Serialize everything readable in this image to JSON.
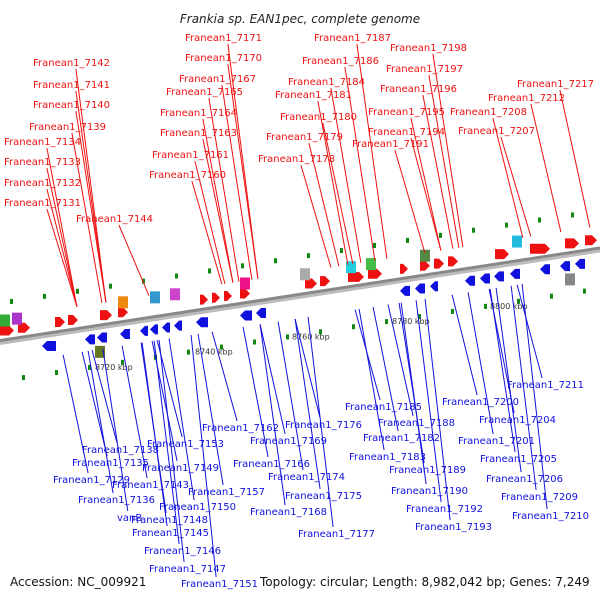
{
  "title": "Frankia sp. EAN1pec, complete genome",
  "footer": {
    "accession": "Accession: NC_009921",
    "stats": "Topology: circular; Length: 8,982,042 bp; Genes: 7,249"
  },
  "colors": {
    "forward": "#ee1111",
    "reverse": "#1111dd",
    "backbone": "#888888",
    "tick": "#118811"
  },
  "scale_ticks": [
    "8720 kbp",
    "8740 kbp",
    "8760 kbp",
    "8780 kbp",
    "8800 kbp"
  ],
  "top_genes": [
    "Franean1_7142",
    "Franean1_7141",
    "Franean1_7140",
    "Franean1_7139",
    "Franean1_7134",
    "Franean1_7133",
    "Franean1_7132",
    "Franean1_7131",
    "Franean1_7144",
    "Franean1_7171",
    "Franean1_7170",
    "Franean1_7167",
    "Franean1_7165",
    "Franean1_7164",
    "Franean1_7163",
    "Franean1_7161",
    "Franean1_7160",
    "Franean1_7187",
    "Franean1_7186",
    "Franean1_7184",
    "Franean1_7181",
    "Franean1_7180",
    "Franean1_7179",
    "Franean1_7178",
    "Franean1_7198",
    "Franean1_7197",
    "Franean1_7196",
    "Franean1_7195",
    "Franean1_7194",
    "Franean1_7191",
    "Franean1_7217",
    "Franean1_7212",
    "Franean1_7208",
    "Franean1_7207"
  ],
  "bottom_genes": [
    "Franean1_7129",
    "Franean1_7135",
    "Franean1_7138",
    "Franean1_7136",
    "vanB",
    "Franean1_7143",
    "Franean1_7145",
    "Franean1_7146",
    "Franean1_7147",
    "Franean1_7148",
    "Franean1_7149",
    "Franean1_7150",
    "Franean1_7151",
    "Franean1_7153",
    "Franean1_7157",
    "Franean1_7162",
    "Franean1_7166",
    "Franean1_7168",
    "Franean1_7169",
    "Franean1_7174",
    "Franean1_7175",
    "Franean1_7176",
    "Franean1_7177",
    "Franean1_7182",
    "Franean1_7183",
    "Franean1_7185",
    "Franean1_7188",
    "Franean1_7189",
    "Franean1_7190",
    "Franean1_7192",
    "Franean1_7193",
    "Franean1_7200",
    "Franean1_7201",
    "Franean1_7204",
    "Franean1_7205",
    "Franean1_7206",
    "Franean1_7209",
    "Franean1_7210",
    "Franean1_7211"
  ]
}
